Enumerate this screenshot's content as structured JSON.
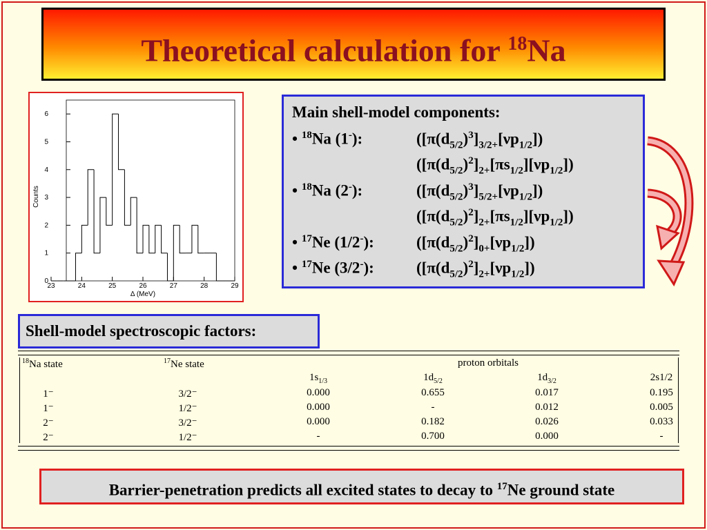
{
  "title": [
    {
      "t": "Theoretical calculation for "
    },
    {
      "sup": "18"
    },
    {
      "t": "Na"
    }
  ],
  "chart_data": {
    "type": "histogram",
    "xlabel": "Δ (MeV)",
    "ylabel": "Counts",
    "bins": [
      23.0,
      23.2,
      23.4,
      23.6,
      23.8,
      24.0,
      24.2,
      24.4,
      24.6,
      24.8,
      25.0,
      25.2,
      25.4,
      25.6,
      25.8,
      26.0,
      26.2,
      26.4,
      26.6,
      26.8,
      27.0,
      27.2,
      27.4,
      27.6,
      27.8,
      28.0,
      28.2,
      28.4,
      28.6,
      28.8,
      29.0
    ],
    "values": [
      0,
      0,
      0,
      0,
      1,
      2,
      4,
      1,
      3,
      2,
      6,
      4,
      2,
      3,
      1,
      2,
      1,
      2,
      1,
      0,
      2,
      1,
      1,
      2,
      1,
      1,
      1,
      0,
      0,
      0
    ],
    "xlim": [
      23,
      29
    ],
    "ylim": [
      0,
      6.5
    ],
    "xticks": [
      23,
      24,
      25,
      26,
      27,
      28,
      29
    ],
    "yticks": [
      0,
      1,
      2,
      3,
      4,
      5,
      6
    ],
    "color": "#000000"
  },
  "components": {
    "heading": "Main shell-model components:",
    "items": [
      {
        "label": [
          {
            "t": "• "
          },
          {
            "sup": "18"
          },
          {
            "t": "Na (1"
          },
          {
            "sup": "-"
          },
          {
            "t": "):"
          }
        ],
        "configs": [
          [
            {
              "t": "([π(d"
            },
            {
              "sub": "5/2"
            },
            {
              "t": ")"
            },
            {
              "sup": "3"
            },
            {
              "t": "]"
            },
            {
              "sub": "3/2+"
            },
            {
              "t": "[νp"
            },
            {
              "sub": "1/2"
            },
            {
              "t": "])"
            }
          ],
          [
            {
              "t": "([π(d"
            },
            {
              "sub": "5/2"
            },
            {
              "t": ")"
            },
            {
              "sup": "2"
            },
            {
              "t": "]"
            },
            {
              "sub": "2+"
            },
            {
              "t": "[πs"
            },
            {
              "sub": "1/2"
            },
            {
              "t": "][νp"
            },
            {
              "sub": "1/2"
            },
            {
              "t": "])"
            }
          ]
        ]
      },
      {
        "label": [
          {
            "t": "• "
          },
          {
            "sup": "18"
          },
          {
            "t": "Na (2"
          },
          {
            "sup": "-"
          },
          {
            "t": "):"
          }
        ],
        "configs": [
          [
            {
              "t": "([π(d"
            },
            {
              "sub": "5/2"
            },
            {
              "t": ")"
            },
            {
              "sup": "3"
            },
            {
              "t": "]"
            },
            {
              "sub": "5/2+"
            },
            {
              "t": "[νp"
            },
            {
              "sub": "1/2"
            },
            {
              "t": "])"
            }
          ],
          [
            {
              "t": "([π(d"
            },
            {
              "sub": "5/2"
            },
            {
              "t": ")"
            },
            {
              "sup": "2"
            },
            {
              "t": "]"
            },
            {
              "sub": "2+"
            },
            {
              "t": "[πs"
            },
            {
              "sub": "1/2"
            },
            {
              "t": "][νp"
            },
            {
              "sub": "1/2"
            },
            {
              "t": "])"
            }
          ]
        ]
      },
      {
        "label": [
          {
            "t": "• "
          },
          {
            "sup": "17"
          },
          {
            "t": "Ne (1/2"
          },
          {
            "sup": "-"
          },
          {
            "t": "):"
          }
        ],
        "configs": [
          [
            {
              "t": "([π(d"
            },
            {
              "sub": "5/2"
            },
            {
              "t": ")"
            },
            {
              "sup": "2"
            },
            {
              "t": "]"
            },
            {
              "sub": "0+"
            },
            {
              "t": "[νp"
            },
            {
              "sub": "1/2"
            },
            {
              "t": "])"
            }
          ]
        ]
      },
      {
        "label": [
          {
            "t": "• "
          },
          {
            "sup": "17"
          },
          {
            "t": "Ne (3/2"
          },
          {
            "sup": "-"
          },
          {
            "t": "):"
          }
        ],
        "configs": [
          [
            {
              "t": "([π(d"
            },
            {
              "sub": "5/2"
            },
            {
              "t": ")"
            },
            {
              "sup": "2"
            },
            {
              "t": "]"
            },
            {
              "sub": "2+"
            },
            {
              "t": "[νp"
            },
            {
              "sub": "1/2"
            },
            {
              "t": "])"
            }
          ]
        ]
      }
    ]
  },
  "factors_label": "Shell-model spectroscopic factors:",
  "table": {
    "header": [
      [
        {
          "sup": "18"
        },
        {
          "t": "Na state"
        }
      ],
      [
        {
          "sup": "17"
        },
        {
          "t": "Ne state"
        }
      ],
      [
        {
          "t": "proton orbitals"
        }
      ]
    ],
    "orbitals": [
      [
        {
          "t": "1s"
        },
        {
          "sub": "1/3"
        }
      ],
      [
        {
          "t": "1d"
        },
        {
          "sub": "5/2"
        }
      ],
      [
        {
          "t": "1d"
        },
        {
          "sub": "3/2"
        }
      ],
      [
        {
          "t": "2s1/2"
        }
      ]
    ],
    "rows": [
      [
        "1⁻",
        "3/2⁻",
        "0.000",
        "0.655",
        "0.017",
        "0.195"
      ],
      [
        "1⁻",
        "1/2⁻",
        "0.000",
        "-",
        "0.012",
        "0.005"
      ],
      [
        "2⁻",
        "3/2⁻",
        "0.000",
        "0.182",
        "0.026",
        "0.033"
      ],
      [
        "2⁻",
        "1/2⁻",
        "-",
        "0.700",
        "0.000",
        "-"
      ]
    ]
  },
  "note": [
    {
      "t": "Barrier-penetration predicts all excited states to decay to "
    },
    {
      "sup": "17"
    },
    {
      "t": "Ne ground state"
    }
  ]
}
